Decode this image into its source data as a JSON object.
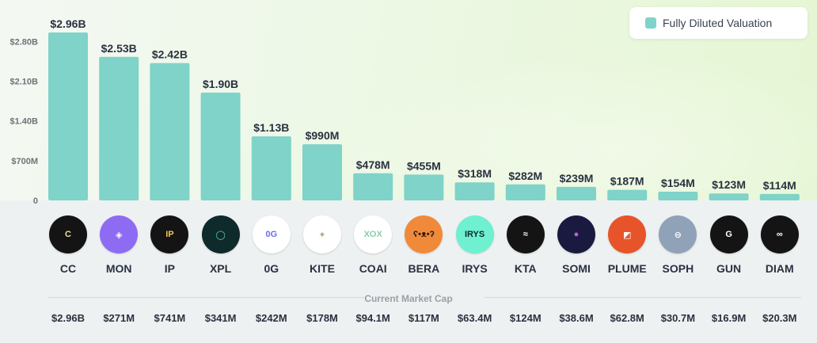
{
  "chart_data": {
    "type": "bar",
    "title": "",
    "xlabel": "",
    "ylabel": "",
    "legend": "top-right",
    "series": [
      {
        "name": "Fully Diluted Valuation",
        "values": [
          2960,
          2530,
          2420,
          1900,
          1130,
          990,
          478,
          455,
          318,
          282,
          239,
          187,
          154,
          123,
          114
        ],
        "labels": [
          "$2.96B",
          "$2.53B",
          "$2.42B",
          "$1.90B",
          "$1.13B",
          "$990M",
          "$478M",
          "$455M",
          "$318M",
          "$282M",
          "$239M",
          "$187M",
          "$154M",
          "$123M",
          "$114M"
        ]
      }
    ],
    "categories": [
      "CC",
      "MON",
      "IP",
      "XPL",
      "0G",
      "KITE",
      "COAI",
      "BERA",
      "IRYS",
      "KTA",
      "SOMI",
      "PLUME",
      "SOPH",
      "GUN",
      "DIAM"
    ],
    "value_unit": "$M",
    "ylim": [
      0,
      2960
    ],
    "yticks": [
      {
        "value": 0,
        "label": "0"
      },
      {
        "value": 700,
        "label": "$700M"
      },
      {
        "value": 1400,
        "label": "$1.40B"
      },
      {
        "value": 2100,
        "label": "$2.10B"
      },
      {
        "value": 2800,
        "label": "$2.80B"
      }
    ],
    "secondary_table": {
      "title": "Current Market Cap",
      "values": [
        "$2.96B",
        "$271M",
        "$741M",
        "$341M",
        "$242M",
        "$178M",
        "$94.1M",
        "$117M",
        "$63.4M",
        "$124M",
        "$38.6M",
        "$62.8M",
        "$30.7M",
        "$16.9M",
        "$20.3M"
      ]
    }
  },
  "logos": [
    {
      "text": "C",
      "bg": "#141414",
      "fg": "#e8e0a0",
      "icon": "cc-logo-icon"
    },
    {
      "text": "◈",
      "bg": "#8d6cf3",
      "fg": "#ffffff",
      "icon": "mon-logo-icon"
    },
    {
      "text": "IP",
      "bg": "#141414",
      "fg": "#f2c35a",
      "icon": "ip-logo-icon"
    },
    {
      "text": "◯",
      "bg": "#0e2a2a",
      "fg": "#5fd3c0",
      "icon": "xpl-logo-icon"
    },
    {
      "text": "0G",
      "bg": "#ffffff",
      "fg": "#6b6cf0",
      "icon": "0g-logo-icon"
    },
    {
      "text": "✦",
      "bg": "#ffffff",
      "fg": "#b8a68a",
      "icon": "kite-logo-icon"
    },
    {
      "text": "XOX",
      "bg": "#ffffff",
      "fg": "#86cfa8",
      "icon": "coai-logo-icon"
    },
    {
      "text": "ʕ•ᴥ•ʔ",
      "bg": "#f08a3a",
      "fg": "#2a1a10",
      "icon": "bera-logo-icon"
    },
    {
      "text": "IRYS",
      "bg": "#6ff0d0",
      "fg": "#0e2a2a",
      "icon": "irys-logo-icon"
    },
    {
      "text": "≈",
      "bg": "#141414",
      "fg": "#ffffff",
      "icon": "kta-logo-icon"
    },
    {
      "text": "●",
      "bg": "#1a1a40",
      "fg": "#c060e0",
      "icon": "somi-logo-icon"
    },
    {
      "text": "◩",
      "bg": "#e8542a",
      "fg": "#ffffff",
      "icon": "plume-logo-icon"
    },
    {
      "text": "⊖",
      "bg": "#8fa2b8",
      "fg": "#ffffff",
      "icon": "soph-logo-icon"
    },
    {
      "text": "G",
      "bg": "#141414",
      "fg": "#ffffff",
      "icon": "gun-logo-icon"
    },
    {
      "text": "∞",
      "bg": "#141414",
      "fg": "#ffffff",
      "icon": "diam-logo-icon"
    }
  ]
}
